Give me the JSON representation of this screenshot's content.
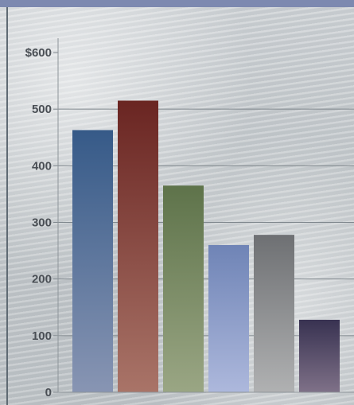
{
  "chart_data": {
    "type": "bar",
    "categories": [
      "",
      "",
      "",
      "",
      "",
      ""
    ],
    "values": [
      463,
      515,
      365,
      260,
      278,
      128
    ],
    "ylim": [
      0,
      600
    ],
    "yticks": [
      {
        "value": 0,
        "label": "0"
      },
      {
        "value": 100,
        "label": "100"
      },
      {
        "value": 200,
        "label": "200"
      },
      {
        "value": 300,
        "label": "300"
      },
      {
        "value": 400,
        "label": "400"
      },
      {
        "value": 500,
        "label": "500"
      },
      {
        "value": 600,
        "label": "$600"
      }
    ],
    "grid": true,
    "bar_colors": [
      {
        "top": "#365a88",
        "bottom": "#8895b3"
      },
      {
        "top": "#6a2522",
        "bottom": "#a97468"
      },
      {
        "top": "#5e734a",
        "bottom": "#9aa684"
      },
      {
        "top": "#6f84b6",
        "bottom": "#adb8dc"
      },
      {
        "top": "#6e7073",
        "bottom": "#b0b1b2"
      },
      {
        "top": "#383251",
        "bottom": "#7f7188"
      }
    ]
  }
}
